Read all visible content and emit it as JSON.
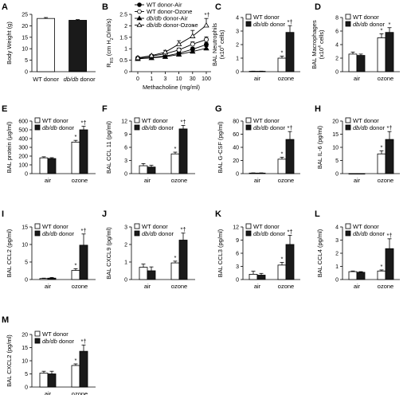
{
  "figure": {
    "colors": {
      "white_bar": "#ffffff",
      "black_bar": "#1a1a1a",
      "stroke": "#000000"
    }
  },
  "chart_data": [
    {
      "panel": "A",
      "type": "bar",
      "ylabel": "Body Weight (g)",
      "ylim": [
        0,
        25
      ],
      "yticks": [
        0,
        5,
        10,
        15,
        20,
        25
      ],
      "categories": [
        "WT donor",
        "db/db donor"
      ],
      "series": [
        {
          "values": [
            23.2,
            22.4
          ],
          "errors": [
            0.4,
            0.3
          ]
        }
      ],
      "legend": []
    },
    {
      "panel": "B",
      "type": "line",
      "ylabel_main": "R",
      "ylabel_sub": "RS",
      "ylabel_rest": " (cm H",
      "ylabel_sub2": "2",
      "ylabel_end": "O/ml/s)",
      "xlabel": "Methacholine (mg/ml)",
      "x": [
        "0",
        "1",
        "3",
        "10",
        "30",
        "100"
      ],
      "ylim": [
        0,
        2.5
      ],
      "yticks": [
        0,
        0.5,
        1,
        1.5,
        2,
        2.5
      ],
      "series": [
        {
          "name": "WT donor-Air",
          "marker": "filled-circle",
          "values": [
            0.58,
            0.62,
            0.68,
            0.8,
            0.98,
            1.18
          ],
          "errors": [
            0.04,
            0.04,
            0.05,
            0.07,
            0.09,
            0.1
          ]
        },
        {
          "name": "WT donor-Ozone",
          "marker": "open-circle",
          "values": [
            0.6,
            0.68,
            0.78,
            0.95,
            1.2,
            1.4
          ],
          "errors": [
            0.04,
            0.05,
            0.06,
            0.08,
            0.1,
            0.12
          ]
        },
        {
          "name": "db/db donor-Air",
          "marker": "filled-triangle",
          "values": [
            0.56,
            0.6,
            0.65,
            0.75,
            0.88,
            1.02
          ],
          "errors": [
            0.03,
            0.04,
            0.04,
            0.05,
            0.06,
            0.07
          ]
        },
        {
          "name": "db/db donor-Ozone",
          "marker": "open-triangle",
          "values": [
            0.6,
            0.7,
            0.85,
            1.2,
            1.55,
            2.02
          ],
          "errors": [
            0.04,
            0.05,
            0.08,
            0.15,
            0.25,
            0.3
          ]
        }
      ],
      "annotations": [
        {
          "text": "*†",
          "x_index": 5,
          "series": 3
        },
        {
          "text": "*",
          "x_index": 4,
          "series": 3
        }
      ]
    },
    {
      "panel": "C",
      "type": "bar",
      "ylabel": "BAL Neutrophils",
      "ylabel2a": "(x10",
      "ylabel2sup": "4",
      "ylabel2b": " cells)",
      "categories": [
        "air",
        "ozone"
      ],
      "ylim": [
        0,
        4
      ],
      "yticks": [
        0,
        1,
        2,
        3,
        4
      ],
      "series": [
        {
          "name": "WT donor",
          "values": [
            0.03,
            1.0
          ],
          "errors": [
            0.01,
            0.15
          ]
        },
        {
          "name": "db/db donor",
          "values": [
            0.03,
            2.9
          ],
          "errors": [
            0.01,
            0.5
          ]
        }
      ],
      "legend": [
        "WT donor",
        "db/db donor"
      ],
      "annotations": [
        {
          "text": "*",
          "cat": 1,
          "series": 0
        },
        {
          "text": "*†",
          "cat": 1,
          "series": 1
        }
      ]
    },
    {
      "panel": "D",
      "type": "bar",
      "ylabel": "BAL Macrophages",
      "ylabel2a": "(x10",
      "ylabel2sup": "4",
      "ylabel2b": " cells)",
      "categories": [
        "air",
        "ozone"
      ],
      "ylim": [
        0,
        8
      ],
      "yticks": [
        0,
        2,
        4,
        6,
        8
      ],
      "series": [
        {
          "name": "WT donor",
          "values": [
            2.6,
            5.0
          ],
          "errors": [
            0.3,
            0.6
          ]
        },
        {
          "name": "db/db donor",
          "values": [
            2.4,
            5.8
          ],
          "errors": [
            0.2,
            0.7
          ]
        }
      ],
      "legend": [
        "WT donor",
        "db/db donor"
      ],
      "annotations": [
        {
          "text": "*",
          "cat": 1,
          "series": 0
        },
        {
          "text": "*",
          "cat": 1,
          "series": 1
        }
      ]
    },
    {
      "panel": "E",
      "type": "bar",
      "ylabel_a": "BAL protein (",
      "ylabel_mu": "μ",
      "ylabel_b": "g/ml)",
      "categories": [
        "air",
        "ozone"
      ],
      "ylim": [
        0,
        600
      ],
      "yticks": [
        0,
        100,
        200,
        300,
        400,
        500,
        600
      ],
      "series": [
        {
          "name": "WT donor",
          "values": [
            180,
            360
          ],
          "errors": [
            12,
            20
          ]
        },
        {
          "name": "db/db donor",
          "values": [
            172,
            500
          ],
          "errors": [
            10,
            40
          ]
        }
      ],
      "legend": [
        "WT donor",
        "db/db donor"
      ],
      "annotations": [
        {
          "text": "*",
          "cat": 1,
          "series": 0
        },
        {
          "text": "*†",
          "cat": 1,
          "series": 1
        }
      ]
    },
    {
      "panel": "F",
      "type": "bar",
      "ylabel": "BAL CCL 11 (pg/ml)",
      "categories": [
        "air",
        "ozone"
      ],
      "ylim": [
        0,
        12
      ],
      "yticks": [
        0,
        3,
        6,
        9,
        12
      ],
      "series": [
        {
          "name": "WT donor",
          "values": [
            1.8,
            4.5
          ],
          "errors": [
            0.5,
            0.4
          ]
        },
        {
          "name": "db/db donor",
          "values": [
            1.5,
            10.2
          ],
          "errors": [
            0.4,
            0.8
          ]
        }
      ],
      "legend": [
        "WT donor",
        "db/db donor"
      ],
      "annotations": [
        {
          "text": "*",
          "cat": 1,
          "series": 0
        },
        {
          "text": "*†",
          "cat": 1,
          "series": 1
        }
      ]
    },
    {
      "panel": "G",
      "type": "bar",
      "ylabel": "BAL G-CSF (pg/ml)",
      "categories": [
        "air",
        "ozone"
      ],
      "ylim": [
        0,
        80
      ],
      "yticks": [
        0,
        20,
        40,
        60,
        80
      ],
      "series": [
        {
          "name": "WT donor",
          "values": [
            0.8,
            22
          ],
          "errors": [
            0.3,
            3
          ]
        },
        {
          "name": "db/db donor",
          "values": [
            0.8,
            52
          ],
          "errors": [
            0.3,
            12
          ]
        }
      ],
      "legend": [
        "WT donor",
        "db/db donor"
      ],
      "annotations": [
        {
          "text": "*",
          "cat": 1,
          "series": 0
        },
        {
          "text": "*†",
          "cat": 1,
          "series": 1
        }
      ]
    },
    {
      "panel": "H",
      "type": "bar",
      "ylabel": "BAL IL-6 (pg/ml)",
      "categories": [
        "air",
        "ozone"
      ],
      "ylim": [
        0,
        20
      ],
      "yticks": [
        0,
        5,
        10,
        15,
        20
      ],
      "series": [
        {
          "name": "WT donor",
          "values": [
            0,
            7.5
          ],
          "errors": [
            0,
            1.2
          ]
        },
        {
          "name": "db/db donor",
          "values": [
            0,
            13
          ],
          "errors": [
            0,
            3
          ]
        }
      ],
      "legend": [
        "WT donor",
        "db/db donor"
      ],
      "annotations": [
        {
          "text": "*",
          "cat": 1,
          "series": 0
        },
        {
          "text": "*†",
          "cat": 1,
          "series": 1
        }
      ]
    },
    {
      "panel": "I",
      "type": "bar",
      "ylabel": "BAL CCL2 (pg/ml)",
      "categories": [
        "air",
        "ozone"
      ],
      "ylim": [
        0,
        15
      ],
      "yticks": [
        0,
        5,
        10,
        15
      ],
      "series": [
        {
          "name": "WT donor",
          "values": [
            0.3,
            2.6
          ],
          "errors": [
            0.1,
            0.5
          ]
        },
        {
          "name": "db/db donor",
          "values": [
            0.4,
            9.8
          ],
          "errors": [
            0.2,
            3.2
          ]
        }
      ],
      "legend": [
        "WT donor",
        "db/db donor"
      ],
      "annotations": [
        {
          "text": "*",
          "cat": 1,
          "series": 0
        },
        {
          "text": "*†",
          "cat": 1,
          "series": 1
        }
      ]
    },
    {
      "panel": "J",
      "type": "bar",
      "ylabel": "BAL CXCL9 (pg/ml)",
      "categories": [
        "air",
        "ozone"
      ],
      "ylim": [
        0,
        3
      ],
      "yticks": [
        0,
        1,
        2,
        3
      ],
      "series": [
        {
          "name": "WT donor",
          "values": [
            0.7,
            0.95
          ],
          "errors": [
            0.18,
            0.1
          ]
        },
        {
          "name": "db/db donor",
          "values": [
            0.5,
            2.25
          ],
          "errors": [
            0.22,
            0.4
          ]
        }
      ],
      "legend": [
        "WT donor",
        "db/db donor"
      ],
      "annotations": [
        {
          "text": "*",
          "cat": 1,
          "series": 0
        },
        {
          "text": "*†",
          "cat": 1,
          "series": 1
        }
      ]
    },
    {
      "panel": "K",
      "type": "bar",
      "ylabel": "BAL CCL3 (pg/ml)",
      "categories": [
        "air",
        "ozone"
      ],
      "ylim": [
        0,
        12
      ],
      "yticks": [
        0,
        3,
        6,
        9,
        12
      ],
      "series": [
        {
          "name": "WT donor",
          "values": [
            1.2,
            3.3
          ],
          "errors": [
            0.7,
            0.6
          ]
        },
        {
          "name": "db/db donor",
          "values": [
            1.0,
            8.0
          ],
          "errors": [
            0.4,
            2.1
          ]
        }
      ],
      "legend": [
        "WT donor",
        "db/db donor"
      ],
      "annotations": [
        {
          "text": "*",
          "cat": 1,
          "series": 0
        },
        {
          "text": "*†",
          "cat": 1,
          "series": 1
        }
      ]
    },
    {
      "panel": "L",
      "type": "bar",
      "ylabel": "BAL CCL4 (pg/ml)",
      "categories": [
        "air",
        "ozone"
      ],
      "ylim": [
        0,
        4
      ],
      "yticks": [
        0,
        1,
        2,
        3,
        4
      ],
      "series": [
        {
          "name": "WT donor",
          "values": [
            0.6,
            0.65
          ],
          "errors": [
            0.05,
            0.08
          ]
        },
        {
          "name": "db/db donor",
          "values": [
            0.55,
            2.35
          ],
          "errors": [
            0.05,
            0.75
          ]
        }
      ],
      "legend": [
        "WT donor",
        "db/db donor"
      ],
      "annotations": [
        {
          "text": "*",
          "cat": 1,
          "series": 0
        },
        {
          "text": "*†",
          "cat": 1,
          "series": 1
        }
      ]
    },
    {
      "panel": "M",
      "type": "bar",
      "ylabel": "BAL CXCL2 (pg/ml)",
      "categories": [
        "air",
        "ozone"
      ],
      "ylim": [
        0,
        20
      ],
      "yticks": [
        0,
        5,
        10,
        15,
        20
      ],
      "series": [
        {
          "name": "WT donor",
          "values": [
            5.3,
            8.2
          ],
          "errors": [
            0.7,
            0.6
          ]
        },
        {
          "name": "db/db donor",
          "values": [
            5.0,
            13.6
          ],
          "errors": [
            1.0,
            2.4
          ]
        }
      ],
      "legend": [
        "WT donor",
        "db/db donor"
      ],
      "annotations": [
        {
          "text": "*",
          "cat": 1,
          "series": 0
        },
        {
          "text": "*†",
          "cat": 1,
          "series": 1
        }
      ]
    }
  ]
}
